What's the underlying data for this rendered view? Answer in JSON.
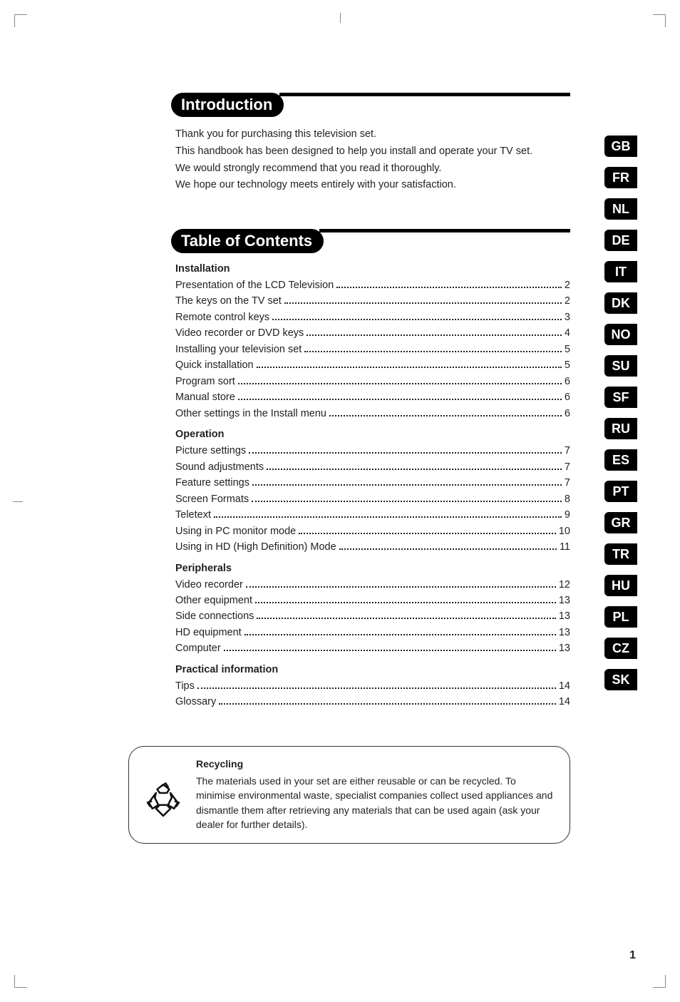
{
  "doc": {
    "page_number": "1",
    "accent_color": "#000000",
    "background_color": "#ffffff",
    "text_color": "#222222",
    "font_body_pt": 14.5,
    "font_heading_pt": 22
  },
  "intro": {
    "heading": "Introduction",
    "lines": [
      "Thank you for purchasing this television set.",
      "This handbook has been designed to help you install and operate your TV set.",
      "We would strongly recommend that you read it thoroughly.",
      "We hope our technology meets entirely with your satisfaction."
    ]
  },
  "toc": {
    "heading": "Table of Contents",
    "sections": [
      {
        "title": "Installation",
        "items": [
          {
            "label": "Presentation of the LCD Television",
            "page": "2"
          },
          {
            "label": "The keys on the TV set",
            "page": "2"
          },
          {
            "label": "Remote control keys",
            "page": "3"
          },
          {
            "label": "Video recorder or DVD keys",
            "page": "4"
          },
          {
            "label": "Installing your television set",
            "page": "5"
          },
          {
            "label": "Quick installation",
            "page": "5"
          },
          {
            "label": "Program sort",
            "page": "6"
          },
          {
            "label": "Manual store",
            "page": "6"
          },
          {
            "label": "Other settings in the Install menu",
            "page": "6"
          }
        ]
      },
      {
        "title": "Operation",
        "items": [
          {
            "label": "Picture settings",
            "page": "7"
          },
          {
            "label": "Sound adjustments",
            "page": "7"
          },
          {
            "label": "Feature settings",
            "page": "7"
          },
          {
            "label": "Screen Formats",
            "page": "8"
          },
          {
            "label": "Teletext",
            "page": "9"
          },
          {
            "label": "Using in PC monitor mode",
            "page": "10"
          },
          {
            "label": "Using in HD (High Definition) Mode",
            "page": "11"
          }
        ]
      },
      {
        "title": "Peripherals",
        "items": [
          {
            "label": "Video recorder",
            "page": "12"
          },
          {
            "label": "Other equipment",
            "page": "13"
          },
          {
            "label": "Side connections",
            "page": "13"
          },
          {
            "label": "HD equipment",
            "page": "13"
          },
          {
            "label": "Computer",
            "page": "13"
          }
        ]
      },
      {
        "title": "Practical information",
        "items": [
          {
            "label": "Tips",
            "page": "14"
          },
          {
            "label": "Glossary",
            "page": "14"
          }
        ]
      }
    ]
  },
  "recycling": {
    "title": "Recycling",
    "body": "The materials used in your set are either reusable or can be recycled. To minimise environmental waste, specialist companies collect used appliances and dismantle them after retrieving any materials that can be used again (ask your dealer for further details).",
    "icon": "recycling-icon"
  },
  "language_tabs": [
    "GB",
    "FR",
    "NL",
    "DE",
    "IT",
    "DK",
    "NO",
    "SU",
    "SF",
    "RU",
    "ES",
    "PT",
    "GR",
    "TR",
    "HU",
    "PL",
    "CZ",
    "SK"
  ]
}
